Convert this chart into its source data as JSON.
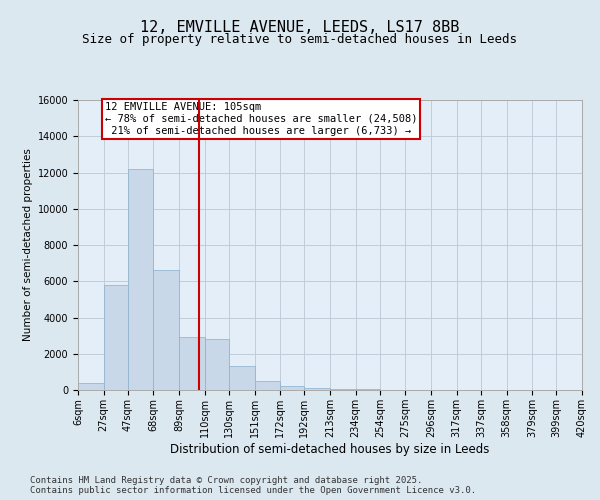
{
  "title1": "12, EMVILLE AVENUE, LEEDS, LS17 8BB",
  "title2": "Size of property relative to semi-detached houses in Leeds",
  "xlabel": "Distribution of semi-detached houses by size in Leeds",
  "ylabel": "Number of semi-detached properties",
  "bin_labels": [
    "6sqm",
    "27sqm",
    "47sqm",
    "68sqm",
    "89sqm",
    "110sqm",
    "130sqm",
    "151sqm",
    "172sqm",
    "192sqm",
    "213sqm",
    "234sqm",
    "254sqm",
    "275sqm",
    "296sqm",
    "317sqm",
    "337sqm",
    "358sqm",
    "379sqm",
    "399sqm",
    "420sqm"
  ],
  "bin_edges": [
    6,
    27,
    47,
    68,
    89,
    110,
    130,
    151,
    172,
    192,
    213,
    234,
    254,
    275,
    296,
    317,
    337,
    358,
    379,
    399,
    420
  ],
  "bar_heights": [
    400,
    5800,
    12200,
    6600,
    2900,
    2800,
    1300,
    500,
    200,
    120,
    60,
    30,
    15,
    8,
    4,
    3,
    2,
    1,
    1,
    0
  ],
  "bar_color": "#c8d8e8",
  "bar_edge_color": "#8ab0cc",
  "property_line_x": 105,
  "property_line_color": "#cc0000",
  "annotation_text": "12 EMVILLE AVENUE: 105sqm\n← 78% of semi-detached houses are smaller (24,508)\n 21% of semi-detached houses are larger (6,733) →",
  "annotation_box_color": "#ffffff",
  "annotation_box_edge_color": "#cc0000",
  "ylim": [
    0,
    16000
  ],
  "yticks": [
    0,
    2000,
    4000,
    6000,
    8000,
    10000,
    12000,
    14000,
    16000
  ],
  "grid_color": "#c0ccd8",
  "bg_color": "#dce8f0",
  "plot_bg_color": "#e4eef8",
  "footer_text": "Contains HM Land Registry data © Crown copyright and database right 2025.\nContains public sector information licensed under the Open Government Licence v3.0.",
  "title1_fontsize": 11,
  "title2_fontsize": 9,
  "annotation_fontsize": 7.5,
  "footer_fontsize": 6.5,
  "tick_fontsize": 7,
  "ylabel_fontsize": 7.5,
  "xlabel_fontsize": 8.5
}
